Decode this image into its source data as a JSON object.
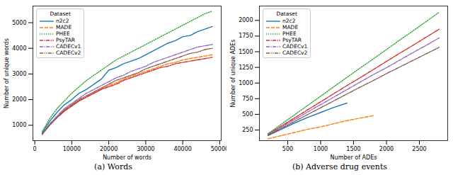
{
  "chart_data": [
    {
      "type": "line",
      "caption": "(a) Words",
      "xlabel": "Number of words",
      "ylabel": "Number of unique words",
      "legend_title": "Dataset",
      "legend": "upper left",
      "xlim": [
        -500,
        50400
      ],
      "xticks": [
        0,
        10000,
        20000,
        30000,
        40000,
        50000
      ],
      "ylim": [
        400,
        5650
      ],
      "yticks": [
        1000,
        2000,
        3000,
        4000,
        5000
      ],
      "series": [
        {
          "name": "n2c2",
          "color": "#1f77b4",
          "line_style": "solid",
          "x": [
            2000,
            4000,
            6000,
            8000,
            10000,
            12000,
            14000,
            16000,
            18000,
            20000,
            22000,
            24000,
            26000,
            28000,
            30000,
            32000,
            34000,
            36000,
            38000,
            40000,
            42000,
            44000,
            46000,
            48000
          ],
          "values": [
            700,
            1150,
            1500,
            1800,
            2000,
            2250,
            2400,
            2600,
            2800,
            3150,
            3250,
            3400,
            3500,
            3600,
            3750,
            3900,
            4050,
            4200,
            4300,
            4450,
            4500,
            4650,
            4750,
            4850
          ]
        },
        {
          "name": "MADE",
          "color": "#ff7f0e",
          "line_style": "dashed",
          "x": [
            2000,
            4000,
            6000,
            8000,
            10000,
            12000,
            14000,
            16000,
            18000,
            20000,
            22000,
            24000,
            26000,
            28000,
            30000,
            32000,
            34000,
            36000,
            38000,
            40000,
            42000,
            44000,
            46000,
            48000
          ],
          "values": [
            650,
            1000,
            1300,
            1550,
            1750,
            1950,
            2100,
            2250,
            2400,
            2550,
            2650,
            2800,
            2900,
            3000,
            3100,
            3200,
            3300,
            3400,
            3450,
            3550,
            3600,
            3650,
            3700,
            3750
          ]
        },
        {
          "name": "PHEE",
          "color": "#2ca02c",
          "line_style": "dotted",
          "x": [
            2000,
            4000,
            6000,
            8000,
            10000,
            12000,
            14000,
            16000,
            18000,
            20000,
            22000,
            24000,
            26000,
            28000,
            30000,
            32000,
            34000,
            36000,
            38000,
            40000,
            42000,
            44000,
            46000,
            48000
          ],
          "values": [
            750,
            1250,
            1650,
            1950,
            2250,
            2500,
            2750,
            2950,
            3150,
            3350,
            3550,
            3700,
            3850,
            4000,
            4150,
            4300,
            4450,
            4600,
            4750,
            4900,
            5050,
            5200,
            5350,
            5450
          ]
        },
        {
          "name": "PsyTAR",
          "color": "#d62728",
          "line_style": "dashdot",
          "x": [
            2000,
            4000,
            6000,
            8000,
            10000,
            12000,
            14000,
            16000,
            18000,
            20000,
            22000,
            24000,
            26000,
            28000,
            30000,
            32000,
            34000,
            36000,
            38000,
            40000,
            42000,
            44000,
            46000,
            48000
          ],
          "values": [
            650,
            1000,
            1300,
            1550,
            1750,
            1950,
            2100,
            2250,
            2400,
            2500,
            2600,
            2750,
            2850,
            2950,
            3050,
            3150,
            3250,
            3300,
            3400,
            3450,
            3500,
            3550,
            3600,
            3650
          ]
        },
        {
          "name": "CADECv1",
          "color": "#9467bd",
          "line_style": "dashdot",
          "x": [
            2000,
            4000,
            6000,
            8000,
            10000,
            12000,
            14000,
            16000,
            18000,
            20000,
            22000,
            24000,
            26000,
            28000,
            30000,
            32000,
            34000,
            36000,
            38000,
            40000,
            42000,
            44000,
            46000,
            48000
          ],
          "values": [
            650,
            1050,
            1350,
            1650,
            1850,
            2050,
            2250,
            2400,
            2550,
            2700,
            2850,
            2950,
            3100,
            3200,
            3300,
            3450,
            3550,
            3650,
            3750,
            3850,
            3950,
            4050,
            4100,
            4150
          ]
        },
        {
          "name": "CADECv2",
          "color": "#8c564b",
          "line_style": "dashdotdot",
          "x": [
            2000,
            4000,
            6000,
            8000,
            10000,
            12000,
            14000,
            16000,
            18000,
            20000,
            22000,
            24000,
            26000,
            28000,
            30000,
            32000,
            34000,
            36000,
            38000,
            40000,
            42000,
            44000,
            46000,
            48000
          ],
          "values": [
            650,
            1000,
            1300,
            1600,
            1800,
            2000,
            2150,
            2300,
            2450,
            2600,
            2750,
            2850,
            2950,
            3050,
            3200,
            3300,
            3400,
            3500,
            3600,
            3700,
            3800,
            3850,
            3950,
            4000
          ]
        }
      ]
    },
    {
      "type": "line",
      "caption": "(b) Adverse drug events",
      "xlabel": "Number of ADEs",
      "ylabel": "Number of unique ADEs",
      "legend_title": "Dataset",
      "legend": "upper left",
      "xlim": [
        70,
        2930
      ],
      "xticks": [
        500,
        1000,
        1500,
        2000,
        2500
      ],
      "ylim": [
        80,
        2230
      ],
      "yticks": [
        250,
        500,
        750,
        1000,
        1250,
        1500,
        1750,
        2000
      ],
      "series": [
        {
          "name": "n2c2",
          "color": "#1f77b4",
          "line_style": "solid",
          "x": [
            200,
            400,
            600,
            800,
            1000,
            1200,
            1400
          ],
          "values": [
            160,
            260,
            360,
            450,
            530,
            610,
            680
          ]
        },
        {
          "name": "MADE",
          "color": "#ff7f0e",
          "line_style": "dashed",
          "x": [
            200,
            400,
            600,
            800,
            1000,
            1200,
            1400,
            1600,
            1800
          ],
          "values": [
            110,
            160,
            210,
            260,
            300,
            350,
            400,
            440,
            480
          ]
        },
        {
          "name": "PHEE",
          "color": "#2ca02c",
          "line_style": "dotted",
          "x": [
            200,
            400,
            600,
            800,
            1000,
            1200,
            1400,
            1600,
            1800,
            2000,
            2200,
            2400,
            2600,
            2800
          ],
          "values": [
            190,
            340,
            490,
            640,
            790,
            940,
            1090,
            1240,
            1385,
            1535,
            1685,
            1830,
            1980,
            2130
          ]
        },
        {
          "name": "PsyTAR",
          "color": "#d62728",
          "line_style": "dashdot",
          "x": [
            200,
            400,
            600,
            800,
            1000,
            1200,
            1400,
            1600,
            1800,
            2000,
            2200,
            2400,
            2600,
            2800
          ],
          "values": [
            180,
            310,
            440,
            570,
            700,
            830,
            960,
            1085,
            1215,
            1345,
            1475,
            1600,
            1730,
            1860
          ]
        },
        {
          "name": "CADECv1",
          "color": "#9467bd",
          "line_style": "dashdot",
          "x": [
            200,
            400,
            600,
            800,
            1000,
            1200,
            1400,
            1600,
            1800,
            2000,
            2200,
            2400,
            2600,
            2800
          ],
          "values": [
            175,
            295,
            415,
            535,
            655,
            775,
            895,
            1015,
            1135,
            1245,
            1365,
            1485,
            1600,
            1720
          ]
        },
        {
          "name": "CADECv2",
          "color": "#8c564b",
          "line_style": "dashdotdot",
          "x": [
            200,
            400,
            600,
            800,
            1000,
            1200,
            1400,
            1600,
            1800,
            2000,
            2200,
            2400,
            2600,
            2800
          ],
          "values": [
            165,
            275,
            385,
            495,
            605,
            715,
            825,
            935,
            1040,
            1150,
            1255,
            1360,
            1465,
            1570
          ]
        }
      ]
    }
  ]
}
